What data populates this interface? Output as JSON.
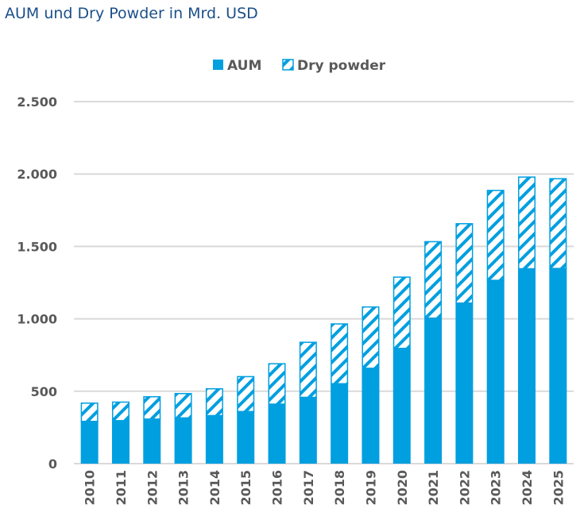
{
  "chart_data": {
    "type": "bar",
    "stacked": true,
    "title": "AUM und Dry Powder in Mrd. USD",
    "xlabel": "",
    "ylabel": "",
    "ylim": [
      0,
      2500
    ],
    "yticks": [
      0,
      500,
      1000,
      1500,
      2000,
      2500
    ],
    "ytick_labels": [
      "0",
      "500",
      "1.000",
      "1.500",
      "2.000",
      "2.500"
    ],
    "grid": true,
    "legend_position": "top-center",
    "categories": [
      "2010",
      "2011",
      "2012",
      "2013",
      "2014",
      "2015",
      "2016",
      "2017",
      "2018",
      "2019",
      "2020",
      "2021",
      "2022",
      "2023",
      "2024",
      "2025"
    ],
    "series": [
      {
        "name": "AUM",
        "color": "#009fe0",
        "pattern": "solid",
        "values": [
          296,
          301,
          312,
          320,
          336,
          364,
          415,
          462,
          556,
          663,
          800,
          1009,
          1113,
          1270,
          1350,
          1352
        ]
      },
      {
        "name": "Dry powder",
        "color": "#009fe0",
        "pattern": "hatched",
        "values": [
          126,
          128,
          154,
          168,
          185,
          241,
          279,
          380,
          413,
          423,
          492,
          528,
          548,
          621,
          633,
          620
        ]
      }
    ]
  }
}
